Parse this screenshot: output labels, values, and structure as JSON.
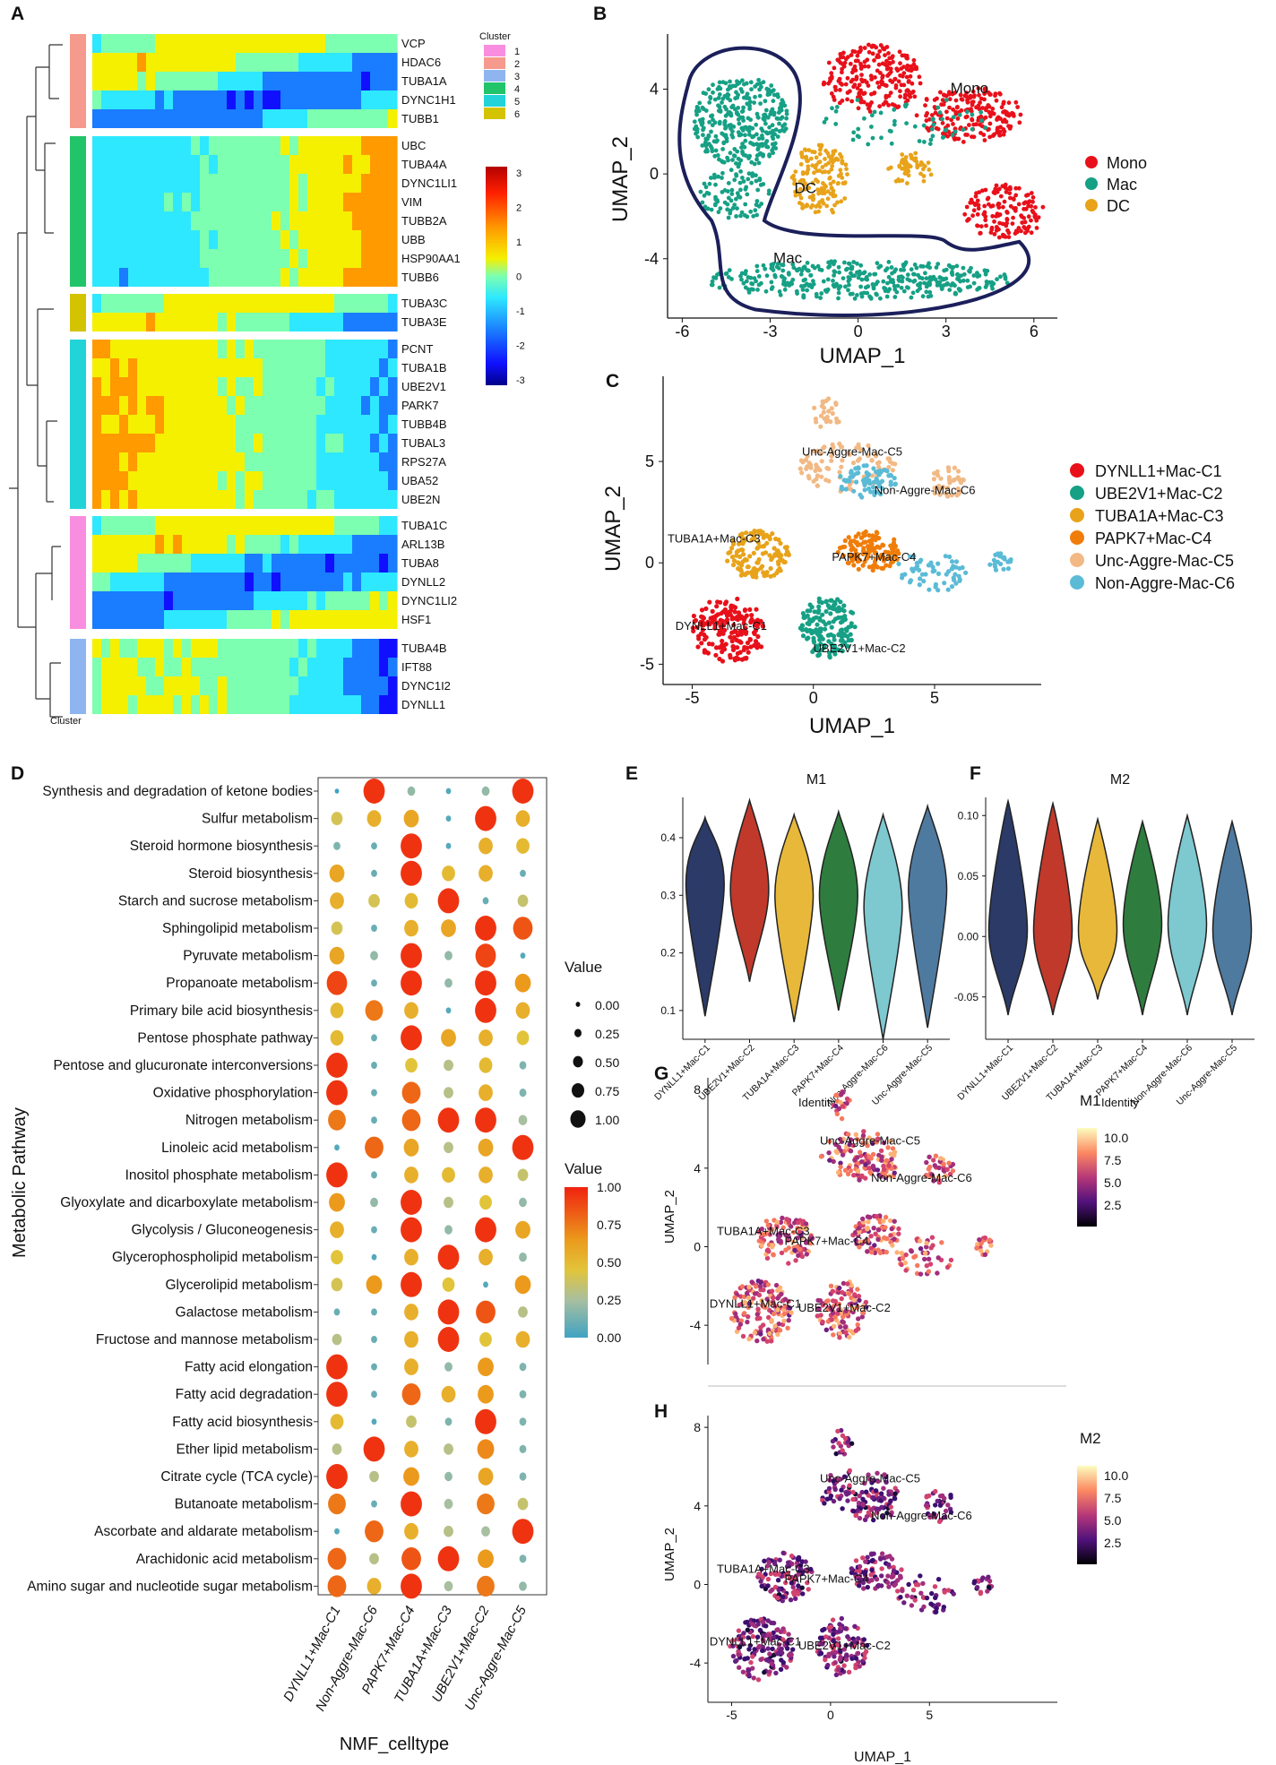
{
  "panels": {
    "A": "A",
    "B": "B",
    "C": "C",
    "D": "D",
    "E": "E",
    "F": "F",
    "G": "G",
    "H": "H"
  },
  "colors": {
    "cluster": {
      "1": "#f98ee0",
      "2": "#f59a8c",
      "3": "#8eb5f0",
      "4": "#22c46a",
      "5": "#22d3d8",
      "6": "#d4c300"
    },
    "mono": "#e8101a",
    "mac": "#16a085",
    "dc": "#e8a31a",
    "c1": "#e8101a",
    "c2": "#16a085",
    "c3": "#e8a31a",
    "c4": "#f07d0a",
    "c5": "#f2b985",
    "c6": "#5bbbd6",
    "violin": [
      "#2b3a67",
      "#c0392b",
      "#e8b83a",
      "#2e7d3e",
      "#7ec8d0",
      "#4f7aa0"
    ]
  },
  "chart_data": [
    {
      "type": "heatmap",
      "panel": "A",
      "legend_title": "Cluster",
      "cluster_legend": [
        "1",
        "2",
        "3",
        "4",
        "5",
        "6"
      ],
      "scale_ticks": [
        "3",
        "2",
        "1",
        "0",
        "-1",
        "-2",
        "-3"
      ],
      "bottom_label": "Cluster",
      "groups": [
        {
          "cluster": "2",
          "genes": [
            "VCP",
            "HDAC6",
            "TUBA1A",
            "DYNC1H1",
            "TUBB1"
          ]
        },
        {
          "cluster": "4",
          "genes": [
            "UBC",
            "TUBA4A",
            "DYNC1LI1",
            "VIM",
            "TUBB2A",
            "UBB",
            "HSP90AA1",
            "TUBB6"
          ]
        },
        {
          "cluster": "6",
          "genes": [
            "TUBA3C",
            "TUBA3E"
          ]
        },
        {
          "cluster": "5",
          "genes": [
            "PCNT",
            "TUBA1B",
            "UBE2V1",
            "PARK7",
            "TUBB4B",
            "TUBAL3",
            "RPS27A",
            "UBA52",
            "UBE2N"
          ]
        },
        {
          "cluster": "1",
          "genes": [
            "TUBA1C",
            "ARL13B",
            "TUBA8",
            "DYNLL2",
            "DYNC1LI2",
            "HSF1"
          ]
        },
        {
          "cluster": "3",
          "genes": [
            "TUBA4B",
            "IFT88",
            "DYNC1I2",
            "DYNLL1"
          ]
        }
      ]
    },
    {
      "type": "scatter",
      "panel": "B",
      "xlabel": "UMAP_1",
      "ylabel": "UMAP_2",
      "xlim": [
        -6.5,
        6.8
      ],
      "ylim": [
        -6.8,
        6.6
      ],
      "xticks": [
        "-6",
        "-3",
        "0",
        "3",
        "6"
      ],
      "yticks": [
        "4",
        "0",
        "-4"
      ],
      "legend": [
        "Mono",
        "Mac",
        "DC"
      ],
      "annotations": [
        "Mono",
        "DC",
        "Mac"
      ]
    },
    {
      "type": "scatter",
      "panel": "C",
      "xlabel": "UMAP_1",
      "ylabel": "UMAP_2",
      "xlim": [
        -6.2,
        9.4
      ],
      "ylim": [
        -6.0,
        9.2
      ],
      "xticks": [
        "-5",
        "0",
        "5"
      ],
      "yticks": [
        "5",
        "0",
        "-5"
      ],
      "legend": [
        "DYNLL1+Mac-C1",
        "UBE2V1+Mac-C2",
        "TUBA1A+Mac-C3",
        "PAPK7+Mac-C4",
        "Unc-Aggre-Mac-C5",
        "Non-Aggre-Mac-C6"
      ],
      "annotations": [
        "Unc-Aggre-Mac-C5",
        "Non-Aggre-Mac-C6",
        "TUBA1A+Mac-C3",
        "PAPK7+Mac-C4",
        "DYNLL1+Mac-C1",
        "UBE2V1+Mac-C2"
      ]
    },
    {
      "type": "scatter",
      "panel": "D",
      "subtype": "dotplot",
      "xlabel": "NMF_celltype",
      "ylabel": "Metabolic Pathway",
      "columns": [
        "DYNLL1+Mac-C1",
        "Non-Aggre-Mac-C6",
        "PAPK7+Mac-C4",
        "TUBA1A+Mac-C3",
        "UBE2V1+Mac-C2",
        "Unc-Aggre-Mac-C5"
      ],
      "size_legend_title": "Value",
      "size_legend": [
        "0.00",
        "0.25",
        "0.50",
        "0.75",
        "1.00"
      ],
      "color_legend_title": "Value",
      "color_legend": [
        "1.00",
        "0.75",
        "0.50",
        "0.25",
        "0.00"
      ],
      "rows": [
        {
          "name": "Synthesis and degradation of ketone bodies",
          "values": [
            0.0,
            0.95,
            0.2,
            0.05,
            0.2,
            0.95
          ]
        },
        {
          "name": "Sulfur metabolism",
          "values": [
            0.4,
            0.55,
            0.6,
            0.05,
            0.95,
            0.55
          ]
        },
        {
          "name": "Steroid hormone biosynthesis",
          "values": [
            0.15,
            0.1,
            0.95,
            0.05,
            0.55,
            0.5
          ]
        },
        {
          "name": "Steroid biosynthesis",
          "values": [
            0.6,
            0.1,
            0.95,
            0.5,
            0.55,
            0.1
          ]
        },
        {
          "name": "Starch and sucrose metabolism",
          "values": [
            0.55,
            0.4,
            0.5,
            0.95,
            0.1,
            0.35
          ]
        },
        {
          "name": "Sphingolipid metabolism",
          "values": [
            0.4,
            0.1,
            0.55,
            0.6,
            0.95,
            0.85
          ]
        },
        {
          "name": "Pyruvate metabolism",
          "values": [
            0.6,
            0.2,
            0.95,
            0.2,
            0.9,
            0.05
          ]
        },
        {
          "name": "Propanoate metabolism",
          "values": [
            0.9,
            0.1,
            0.95,
            0.2,
            0.95,
            0.65
          ]
        },
        {
          "name": "Primary bile acid biosynthesis",
          "values": [
            0.5,
            0.75,
            0.55,
            0.05,
            0.95,
            0.55
          ]
        },
        {
          "name": "Pentose phosphate pathway",
          "values": [
            0.5,
            0.1,
            0.95,
            0.6,
            0.55,
            0.45
          ]
        },
        {
          "name": "Pentose and glucuronate interconversions",
          "values": [
            0.95,
            0.1,
            0.45,
            0.3,
            0.5,
            0.15
          ]
        },
        {
          "name": "Oxidative phosphorylation",
          "values": [
            0.95,
            0.1,
            0.8,
            0.3,
            0.55,
            0.15
          ]
        },
        {
          "name": "Nitrogen metabolism",
          "values": [
            0.75,
            0.1,
            0.8,
            0.95,
            0.95,
            0.25
          ]
        },
        {
          "name": "Linoleic acid metabolism",
          "values": [
            0.05,
            0.8,
            0.6,
            0.3,
            0.6,
            0.95
          ]
        },
        {
          "name": "Inositol phosphate metabolism",
          "values": [
            0.95,
            0.1,
            0.55,
            0.5,
            0.55,
            0.35
          ]
        },
        {
          "name": "Glyoxylate and dicarboxylate metabolism",
          "values": [
            0.65,
            0.2,
            0.95,
            0.3,
            0.45,
            0.2
          ]
        },
        {
          "name": "Glycolysis / Gluconeogenesis",
          "values": [
            0.55,
            0.1,
            0.95,
            0.2,
            0.95,
            0.6
          ]
        },
        {
          "name": "Glycerophospholipid metabolism",
          "values": [
            0.45,
            0.05,
            0.55,
            0.95,
            0.55,
            0.2
          ]
        },
        {
          "name": "Glycerolipid metabolism",
          "values": [
            0.4,
            0.65,
            0.95,
            0.45,
            0.05,
            0.65
          ]
        },
        {
          "name": "Galactose metabolism",
          "values": [
            0.1,
            0.1,
            0.55,
            0.95,
            0.85,
            0.3
          ]
        },
        {
          "name": "Fructose and mannose metabolism",
          "values": [
            0.3,
            0.1,
            0.55,
            0.95,
            0.45,
            0.55
          ]
        },
        {
          "name": "Fatty acid elongation",
          "values": [
            0.95,
            0.1,
            0.55,
            0.2,
            0.65,
            0.15
          ]
        },
        {
          "name": "Fatty acid degradation",
          "values": [
            0.95,
            0.1,
            0.8,
            0.55,
            0.65,
            0.15
          ]
        },
        {
          "name": "Fatty acid biosynthesis",
          "values": [
            0.5,
            0.05,
            0.35,
            0.15,
            0.95,
            0.15
          ]
        },
        {
          "name": "Ether lipid metabolism",
          "values": [
            0.3,
            0.95,
            0.55,
            0.3,
            0.7,
            0.15
          ]
        },
        {
          "name": "Citrate cycle (TCA cycle)",
          "values": [
            0.95,
            0.3,
            0.65,
            0.2,
            0.6,
            0.15
          ]
        },
        {
          "name": "Butanoate metabolism",
          "values": [
            0.75,
            0.1,
            0.95,
            0.25,
            0.75,
            0.35
          ]
        },
        {
          "name": "Ascorbate and aldarate metabolism",
          "values": [
            0.05,
            0.8,
            0.55,
            0.3,
            0.25,
            0.95
          ]
        },
        {
          "name": "Arachidonic acid metabolism",
          "values": [
            0.8,
            0.3,
            0.85,
            0.95,
            0.65,
            0.15
          ]
        },
        {
          "name": "Amino sugar and nucleotide sugar metabolism",
          "values": [
            0.8,
            0.55,
            0.95,
            0.25,
            0.75,
            0.2
          ]
        }
      ]
    },
    {
      "type": "bar",
      "panel": "E",
      "subtype": "violin",
      "title": "M1",
      "xlabel": "Identity",
      "ylabel": "",
      "ylim": [
        0.05,
        0.47
      ],
      "yticks": [
        "0.4",
        "0.3",
        "0.2",
        "0.1"
      ],
      "categories": [
        "DYNLL1+Mac-C1",
        "UBE2V1+Mac-C2",
        "TUBA1A+Mac-C3",
        "PAPK7+Mac-C4",
        "Non-Aggre-Mac-C6",
        "Unc-Aggre-Mac-C5"
      ],
      "series": [
        {
          "name": "median",
          "values": [
            0.32,
            0.31,
            0.3,
            0.3,
            0.28,
            0.31
          ]
        },
        {
          "name": "min",
          "values": [
            0.09,
            0.15,
            0.08,
            0.1,
            0.05,
            0.07
          ]
        },
        {
          "name": "max",
          "values": [
            0.435,
            0.465,
            0.44,
            0.445,
            0.44,
            0.455
          ]
        }
      ]
    },
    {
      "type": "bar",
      "panel": "F",
      "subtype": "violin",
      "title": "M2",
      "xlabel": "Identity",
      "ylabel": "",
      "ylim": [
        -0.085,
        0.115
      ],
      "yticks": [
        "0.10",
        "0.05",
        "0.00",
        "-0.05"
      ],
      "categories": [
        "DYNLL1+Mac-C1",
        "UBE2V1+Mac-C2",
        "TUBA1A+Mac-C3",
        "PAPK7+Mac-C4",
        "Non-Aggre-Mac-C6",
        "Unc-Aggre-Mac-C5"
      ],
      "series": [
        {
          "name": "median",
          "values": [
            0.005,
            0.005,
            0.005,
            0.01,
            0.01,
            0.005
          ]
        },
        {
          "name": "min",
          "values": [
            -0.065,
            -0.065,
            -0.052,
            -0.065,
            -0.065,
            -0.065
          ]
        },
        {
          "name": "max",
          "values": [
            0.112,
            0.11,
            0.097,
            0.095,
            0.1,
            0.095
          ]
        }
      ]
    },
    {
      "type": "scatter",
      "panel": "G",
      "feature": "M1",
      "ylabel": "UMAP_2",
      "yticks": [
        "8",
        "4",
        "0",
        "-4"
      ],
      "colorbar_title": "M1",
      "colorbar_ticks": [
        "10.0",
        "7.5",
        "5.0",
        "2.5"
      ],
      "annotations": [
        "Unc-Aggre-Mac-C5",
        "Non-Aggre-Mac-C6",
        "TUBA1A+Mac-C3",
        "PAPK7+Mac-C4",
        "DYNLL1+Mac-C1",
        "UBE2V1+Mac-C2"
      ]
    },
    {
      "type": "scatter",
      "panel": "H",
      "feature": "M2",
      "xlabel": "UMAP_1",
      "ylabel": "UMAP_2",
      "xticks": [
        "-5",
        "0",
        "5"
      ],
      "yticks": [
        "8",
        "4",
        "0",
        "-4"
      ],
      "colorbar_title": "M2",
      "colorbar_ticks": [
        "10.0",
        "7.5",
        "5.0",
        "2.5"
      ],
      "annotations": [
        "Unc-Aggre-Mac-C5",
        "Non-Aggre-Mac-C6",
        "TUBA1A+Mac-C3",
        "PAPK7+Mac-C4",
        "DYNLL1+Mac-C1",
        "UBE2V1+Mac-C2"
      ]
    }
  ]
}
